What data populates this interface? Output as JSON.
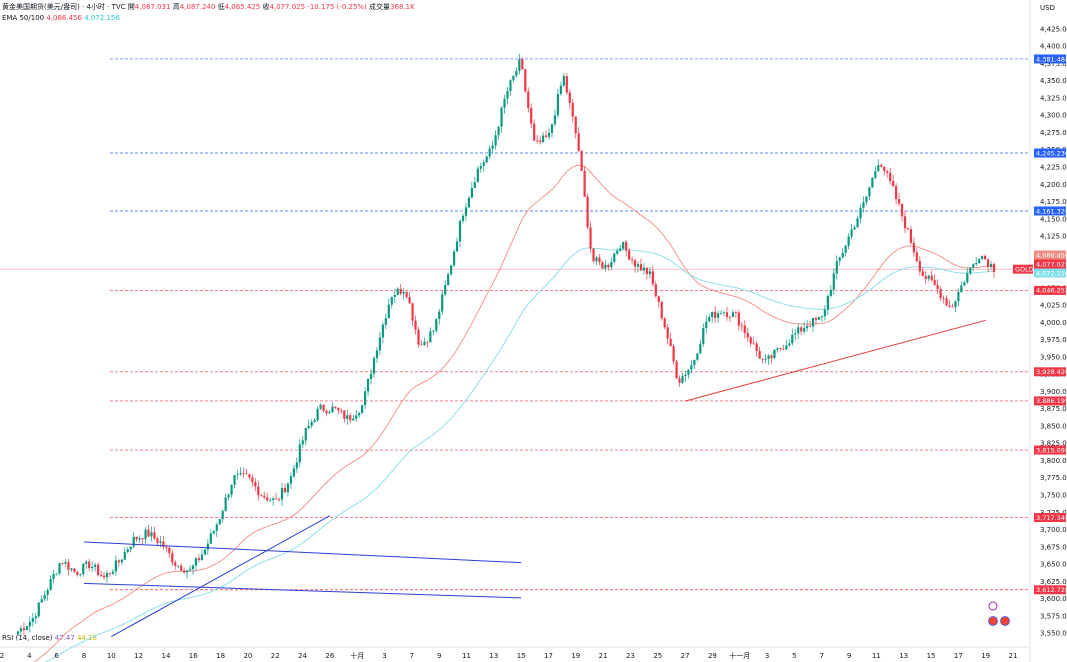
{
  "legend": {
    "title": "黄金美国期货(美元/盎司) · 4小时 · TVC",
    "o_label": "開",
    "o": "4,087.031",
    "h_label": "高",
    "h": "4,087.240",
    "l_label": "低",
    "l": "4,065.425",
    "c_label": "收",
    "c": "4,077.025",
    "change": "-10.175 (-0.25%)",
    "vol_label": "成交量",
    "vol": "368.1K",
    "ema_label": "EMA 50/100",
    "ema50": "4,086.456",
    "ema100": "4,072.156"
  },
  "rsi_legend": {
    "label": "RSI (14, close)",
    "v1": "47.47",
    "v2": "44.18"
  },
  "currency": "USD",
  "colors": {
    "up": "#089981",
    "down": "#f23645",
    "ema50": "#f28b82",
    "ema100": "#80deea",
    "tag_blue": "#2962ff",
    "tag_red": "#f23645",
    "trend_blue": "#2940d3",
    "trend_red": "#e53935"
  },
  "chart_data": {
    "type": "candlestick",
    "y_axis_ticks": [
      "4,425.000",
      "4,400.000",
      "4,375.000",
      "4,350.000",
      "4,325.000",
      "4,300.000",
      "4,275.000",
      "4,250.000",
      "4,225.000",
      "4,200.000",
      "4,175.000",
      "4,150.000",
      "4,125.000",
      "4,100.000",
      "4,075.000",
      "4,050.000",
      "4,025.000",
      "4,000.000",
      "3,975.000",
      "3,950.000",
      "3,925.000",
      "3,900.000",
      "3,875.000",
      "3,850.000",
      "3,825.000",
      "3,800.000",
      "3,775.000",
      "3,750.000",
      "3,725.000",
      "3,700.000",
      "3,675.000",
      "3,650.000",
      "3,625.000",
      "3,600.000",
      "3,575.000",
      "3,550.000"
    ],
    "ylim": [
      3540,
      4435
    ],
    "x_axis_ticks": [
      "2",
      "4",
      "6",
      "8",
      "10",
      "12",
      "14",
      "16",
      "18",
      "20",
      "22",
      "24",
      "26",
      "十月",
      "3",
      "7",
      "9",
      "11",
      "13",
      "15",
      "17",
      "19",
      "21",
      "23",
      "25",
      "27",
      "29",
      "十一月",
      "3",
      "5",
      "7",
      "9",
      "11",
      "13",
      "15",
      "17",
      "19",
      "21"
    ],
    "price_lines": [
      {
        "value": 4381.484,
        "label": "4,381.484",
        "color": "blue"
      },
      {
        "value": 4245.23,
        "label": "4,245.230",
        "color": "blue"
      },
      {
        "value": 4161.32,
        "label": "4,161.320",
        "color": "blue"
      },
      {
        "value": 4046.252,
        "label": "4,046.252",
        "color": "red"
      },
      {
        "value": 3928.42,
        "label": "3,928.420",
        "color": "red"
      },
      {
        "value": 3886.199,
        "label": "3,886.199",
        "color": "red"
      },
      {
        "value": 3815.095,
        "label": "3,815.095",
        "color": "red"
      },
      {
        "value": 3717.348,
        "label": "3,717.348",
        "color": "red"
      },
      {
        "value": 3612.72,
        "label": "3,612.720",
        "color": "red"
      }
    ],
    "right_tags": [
      {
        "value": 4086.456,
        "label": "4,086.456",
        "color": "ema50"
      },
      {
        "value": 4077.025,
        "label": "4,077.025",
        "color": "down"
      },
      {
        "value": 4072.156,
        "label": "4,072.156",
        "color": "ema100"
      }
    ],
    "symbol_tag": "GOLD",
    "price_path": [
      [
        3545,
        3560
      ],
      [
        3560,
        3580
      ],
      [
        3600,
        3625
      ],
      [
        3640,
        3672
      ],
      [
        3625,
        3650
      ],
      [
        3640,
        3660
      ],
      [
        3620,
        3640
      ],
      [
        3640,
        3665
      ],
      [
        3670,
        3700
      ],
      [
        3690,
        3700
      ],
      [
        3670,
        3690
      ],
      [
        3640,
        3660
      ],
      [
        3630,
        3650
      ],
      [
        3660,
        3680
      ],
      [
        3700,
        3730
      ],
      [
        3760,
        3790
      ],
      [
        3780,
        3770
      ],
      [
        3740,
        3760
      ],
      [
        3730,
        3750
      ],
      [
        3760,
        3790
      ],
      [
        3820,
        3860
      ],
      [
        3860,
        3890
      ],
      [
        3870,
        3880
      ],
      [
        3850,
        3870
      ],
      [
        3860,
        3900
      ],
      [
        3950,
        3980
      ],
      [
        4020,
        4060
      ],
      [
        4040,
        4060
      ],
      [
        3950,
        3980
      ],
      [
        3980,
        4000
      ],
      [
        4040,
        4100
      ],
      [
        4140,
        4180
      ],
      [
        4200,
        4240
      ],
      [
        4230,
        4270
      ],
      [
        4300,
        4360
      ],
      [
        4375,
        4381
      ],
      [
        4230,
        4280
      ],
      [
        4260,
        4280
      ],
      [
        4340,
        4375
      ],
      [
        4200,
        4320
      ],
      [
        4080,
        4100
      ],
      [
        4060,
        4100
      ],
      [
        4100,
        4130
      ],
      [
        4070,
        4100
      ],
      [
        4060,
        4080
      ],
      [
        3980,
        4020
      ],
      [
        3900,
        3930
      ],
      [
        3920,
        3960
      ],
      [
        3990,
        4020
      ],
      [
        4010,
        4025
      ],
      [
        4000,
        4020
      ],
      [
        3960,
        3990
      ],
      [
        3930,
        3950
      ],
      [
        3950,
        3970
      ],
      [
        3970,
        3990
      ],
      [
        3990,
        4005
      ],
      [
        4000,
        4010
      ],
      [
        4060,
        4100
      ],
      [
        4120,
        4140
      ],
      [
        4150,
        4200
      ],
      [
        4230,
        4245
      ],
      [
        4180,
        4200
      ],
      [
        4100,
        4160
      ],
      [
        4060,
        4080
      ],
      [
        4040,
        4060
      ],
      [
        4010,
        4030
      ],
      [
        4050,
        4080
      ],
      [
        4090,
        4110
      ],
      [
        4070,
        4087
      ]
    ],
    "trendlines": [
      {
        "name": "blue-channel-upper",
        "from": [
          "8",
          3682
        ],
        "to": [
          "15",
          3652
        ],
        "color": "blue"
      },
      {
        "name": "blue-channel-lower",
        "from": [
          "8",
          3622
        ],
        "to": [
          "15",
          3601
        ],
        "color": "blue"
      },
      {
        "name": "blue-support",
        "from": [
          "10",
          3545
        ],
        "to": [
          "26",
          3720
        ],
        "color": "blue"
      },
      {
        "name": "red-support",
        "from": [
          "27",
          3886
        ],
        "to": [
          "19",
          4003
        ],
        "color": "red"
      }
    ]
  }
}
